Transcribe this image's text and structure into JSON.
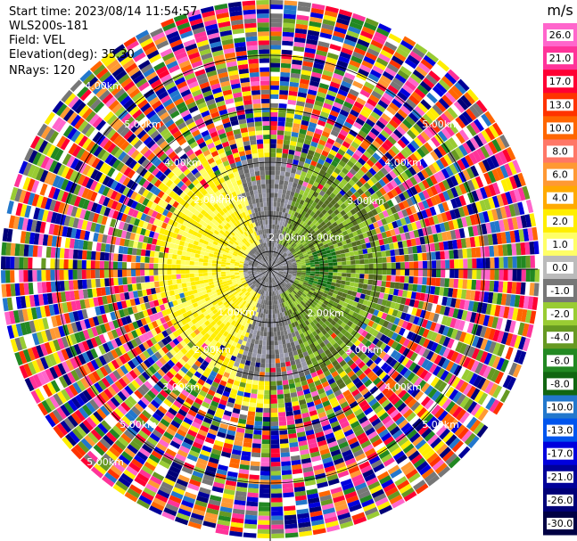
{
  "header": {
    "start_time": "Start time: 2023/08/14 11:54:57",
    "instrument": "WLS200s-181",
    "field": "Field: VEL",
    "elevation": "Elevation(deg): 35.30",
    "nrays": "NRays: 120"
  },
  "chart_data": {
    "type": "heatmap",
    "projection": "polar",
    "title": "",
    "field": "VEL",
    "units": "m/s",
    "nrays": 120,
    "range_ring_labels": [
      "1.00km",
      "2.00km",
      "3.00km",
      "4.00km",
      "5.00km"
    ],
    "colorbar": {
      "label": "m/s",
      "ticks": [
        "26.0",
        "21.0",
        "17.0",
        "13.0",
        "10.0",
        "8.0",
        "6.0",
        "4.0",
        "2.0",
        "1.0",
        "0.0",
        "-1.0",
        "-2.0",
        "-4.0",
        "-6.0",
        "-8.0",
        "-10.0",
        "-13.0",
        "-17.0",
        "-21.0",
        "-26.0",
        "-30.0"
      ],
      "colors": [
        "#ff66cc",
        "#ff3399",
        "#ff0033",
        "#ff3300",
        "#ff6600",
        "#ff7766",
        "#ff9933",
        "#ffaa00",
        "#ffee00",
        "#ffff66",
        "#bbbbbb",
        "#777777",
        "#99cc33",
        "#669922",
        "#228822",
        "#116611",
        "#2277cc",
        "#0055ee",
        "#0000dd",
        "#000099",
        "#000077",
        "#000044"
      ],
      "range": [
        -30.0,
        26.0
      ]
    },
    "noise_colors": [
      "#ff0033",
      "#ff3300",
      "#ff66cc",
      "#ff3399",
      "#0000dd",
      "#000077",
      "#000099",
      "#ffee00",
      "#2277cc",
      "#228822",
      "#669922",
      "#99cc33",
      "#777777",
      "#ff9933",
      "#ff6600"
    ],
    "inner_region_colors": {
      "approaching": [
        "#ffee00",
        "#ffff66"
      ],
      "near_zero": [
        "#777777",
        "#9999aa",
        "#666666"
      ],
      "receding": [
        "#669922",
        "#99cc33",
        "#556b22"
      ],
      "strong_receding": [
        "#228822",
        "#116611"
      ]
    }
  }
}
